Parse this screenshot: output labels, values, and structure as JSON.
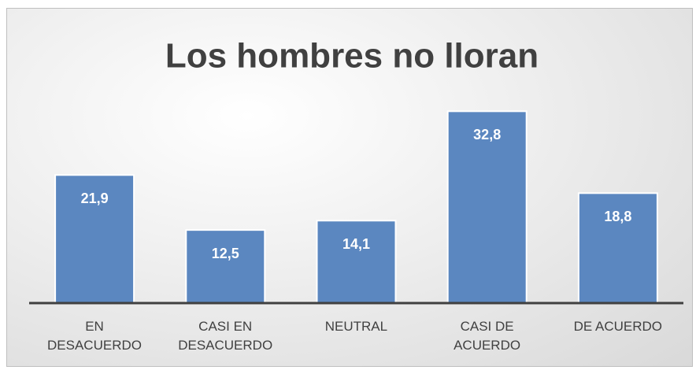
{
  "chart_data": {
    "type": "bar",
    "title": "Los hombres no lloran",
    "categories": [
      "EN\nDESACUERDO",
      "CASI EN\nDESACUERDO",
      "NEUTRAL",
      "CASI DE\nACUERDO",
      "DE ACUERDO"
    ],
    "values": [
      21.9,
      12.5,
      14.1,
      32.8,
      18.8
    ],
    "value_labels": [
      "21,9",
      "12,5",
      "14,1",
      "32,8",
      "18,8"
    ],
    "color": "#5b87c0",
    "ylim": [
      0,
      35
    ]
  }
}
